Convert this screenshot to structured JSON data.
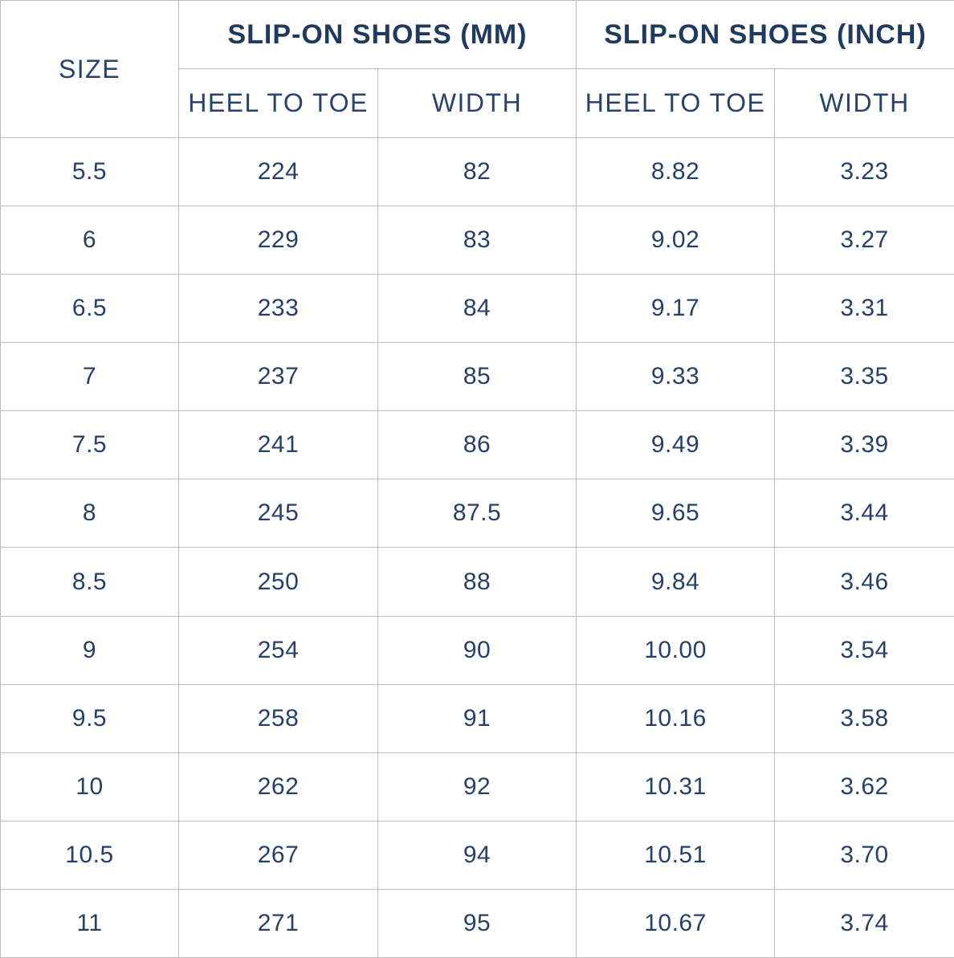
{
  "table": {
    "size_header": "SIZE",
    "group_headers": [
      {
        "label": "SLIP-ON SHOES (MM)"
      },
      {
        "label": "SLIP-ON SHOES (INCH)"
      }
    ],
    "sub_headers": [
      "HEEL TO TOE",
      "WIDTH",
      "HEEL TO TOE",
      "WIDTH"
    ],
    "rows": [
      {
        "size": "5.5",
        "mm_heel_to_toe": "224",
        "mm_width": "82",
        "inch_heel_to_toe": "8.82",
        "inch_width": "3.23"
      },
      {
        "size": "6",
        "mm_heel_to_toe": "229",
        "mm_width": "83",
        "inch_heel_to_toe": "9.02",
        "inch_width": "3.27"
      },
      {
        "size": "6.5",
        "mm_heel_to_toe": "233",
        "mm_width": "84",
        "inch_heel_to_toe": "9.17",
        "inch_width": "3.31"
      },
      {
        "size": "7",
        "mm_heel_to_toe": "237",
        "mm_width": "85",
        "inch_heel_to_toe": "9.33",
        "inch_width": "3.35"
      },
      {
        "size": "7.5",
        "mm_heel_to_toe": "241",
        "mm_width": "86",
        "inch_heel_to_toe": "9.49",
        "inch_width": "3.39"
      },
      {
        "size": "8",
        "mm_heel_to_toe": "245",
        "mm_width": "87.5",
        "inch_heel_to_toe": "9.65",
        "inch_width": "3.44"
      },
      {
        "size": "8.5",
        "mm_heel_to_toe": "250",
        "mm_width": "88",
        "inch_heel_to_toe": "9.84",
        "inch_width": "3.46"
      },
      {
        "size": "9",
        "mm_heel_to_toe": "254",
        "mm_width": "90",
        "inch_heel_to_toe": "10.00",
        "inch_width": "3.54"
      },
      {
        "size": "9.5",
        "mm_heel_to_toe": "258",
        "mm_width": "91",
        "inch_heel_to_toe": "10.16",
        "inch_width": "3.58"
      },
      {
        "size": "10",
        "mm_heel_to_toe": "262",
        "mm_width": "92",
        "inch_heel_to_toe": "10.31",
        "inch_width": "3.62"
      },
      {
        "size": "10.5",
        "mm_heel_to_toe": "267",
        "mm_width": "94",
        "inch_heel_to_toe": "10.51",
        "inch_width": "3.70"
      },
      {
        "size": "11",
        "mm_heel_to_toe": "271",
        "mm_width": "95",
        "inch_heel_to_toe": "10.67",
        "inch_width": "3.74"
      }
    ]
  },
  "colors": {
    "header_text": "#1e3a5f",
    "body_text": "#25406a",
    "border": "#bdbdbd",
    "background": "#ffffff"
  }
}
